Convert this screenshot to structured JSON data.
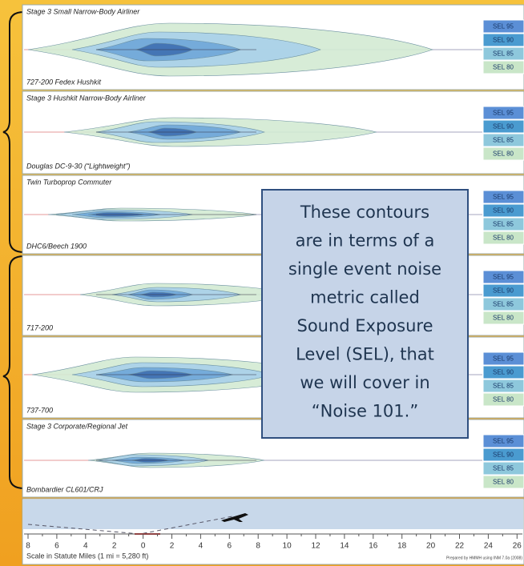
{
  "legend": [
    "SEL 95",
    "SEL 90",
    "SEL 85",
    "SEL 80"
  ],
  "panels": [
    {
      "title": "Stage 3 Small Narrow-Body Airliner",
      "label": "727-200 Fedex Hushkit"
    },
    {
      "title": "Stage 3 Hushkit Narrow-Body Airliner",
      "label": "Douglas DC-9-30 (“Lightweight”)"
    },
    {
      "title": "Twin Turboprop Commuter",
      "label": "DHC6/Beech 1900"
    },
    {
      "label": "717-200"
    },
    {
      "label": "737-700"
    },
    {
      "title": "Stage 3 Corporate/Regional Jet",
      "label": "Bombardier CL601/CRJ"
    }
  ],
  "callout": {
    "lines": [
      "These contours",
      "are in terms of a",
      "single event noise",
      "metric called",
      "Sound Exposure",
      "Level (SEL), that",
      "we will cover in",
      "“Noise 101.”"
    ]
  },
  "scale": {
    "ticks": [
      "8",
      "6",
      "4",
      "2",
      "0",
      "2",
      "4",
      "6",
      "8",
      "10",
      "12",
      "14",
      "16",
      "18",
      "20",
      "22",
      "24",
      "26"
    ],
    "caption": "Scale in Statute Miles (1 mi = 5,280 ft)",
    "credit": "Prepared by HMMH using INM 7.0a (2008)"
  }
}
